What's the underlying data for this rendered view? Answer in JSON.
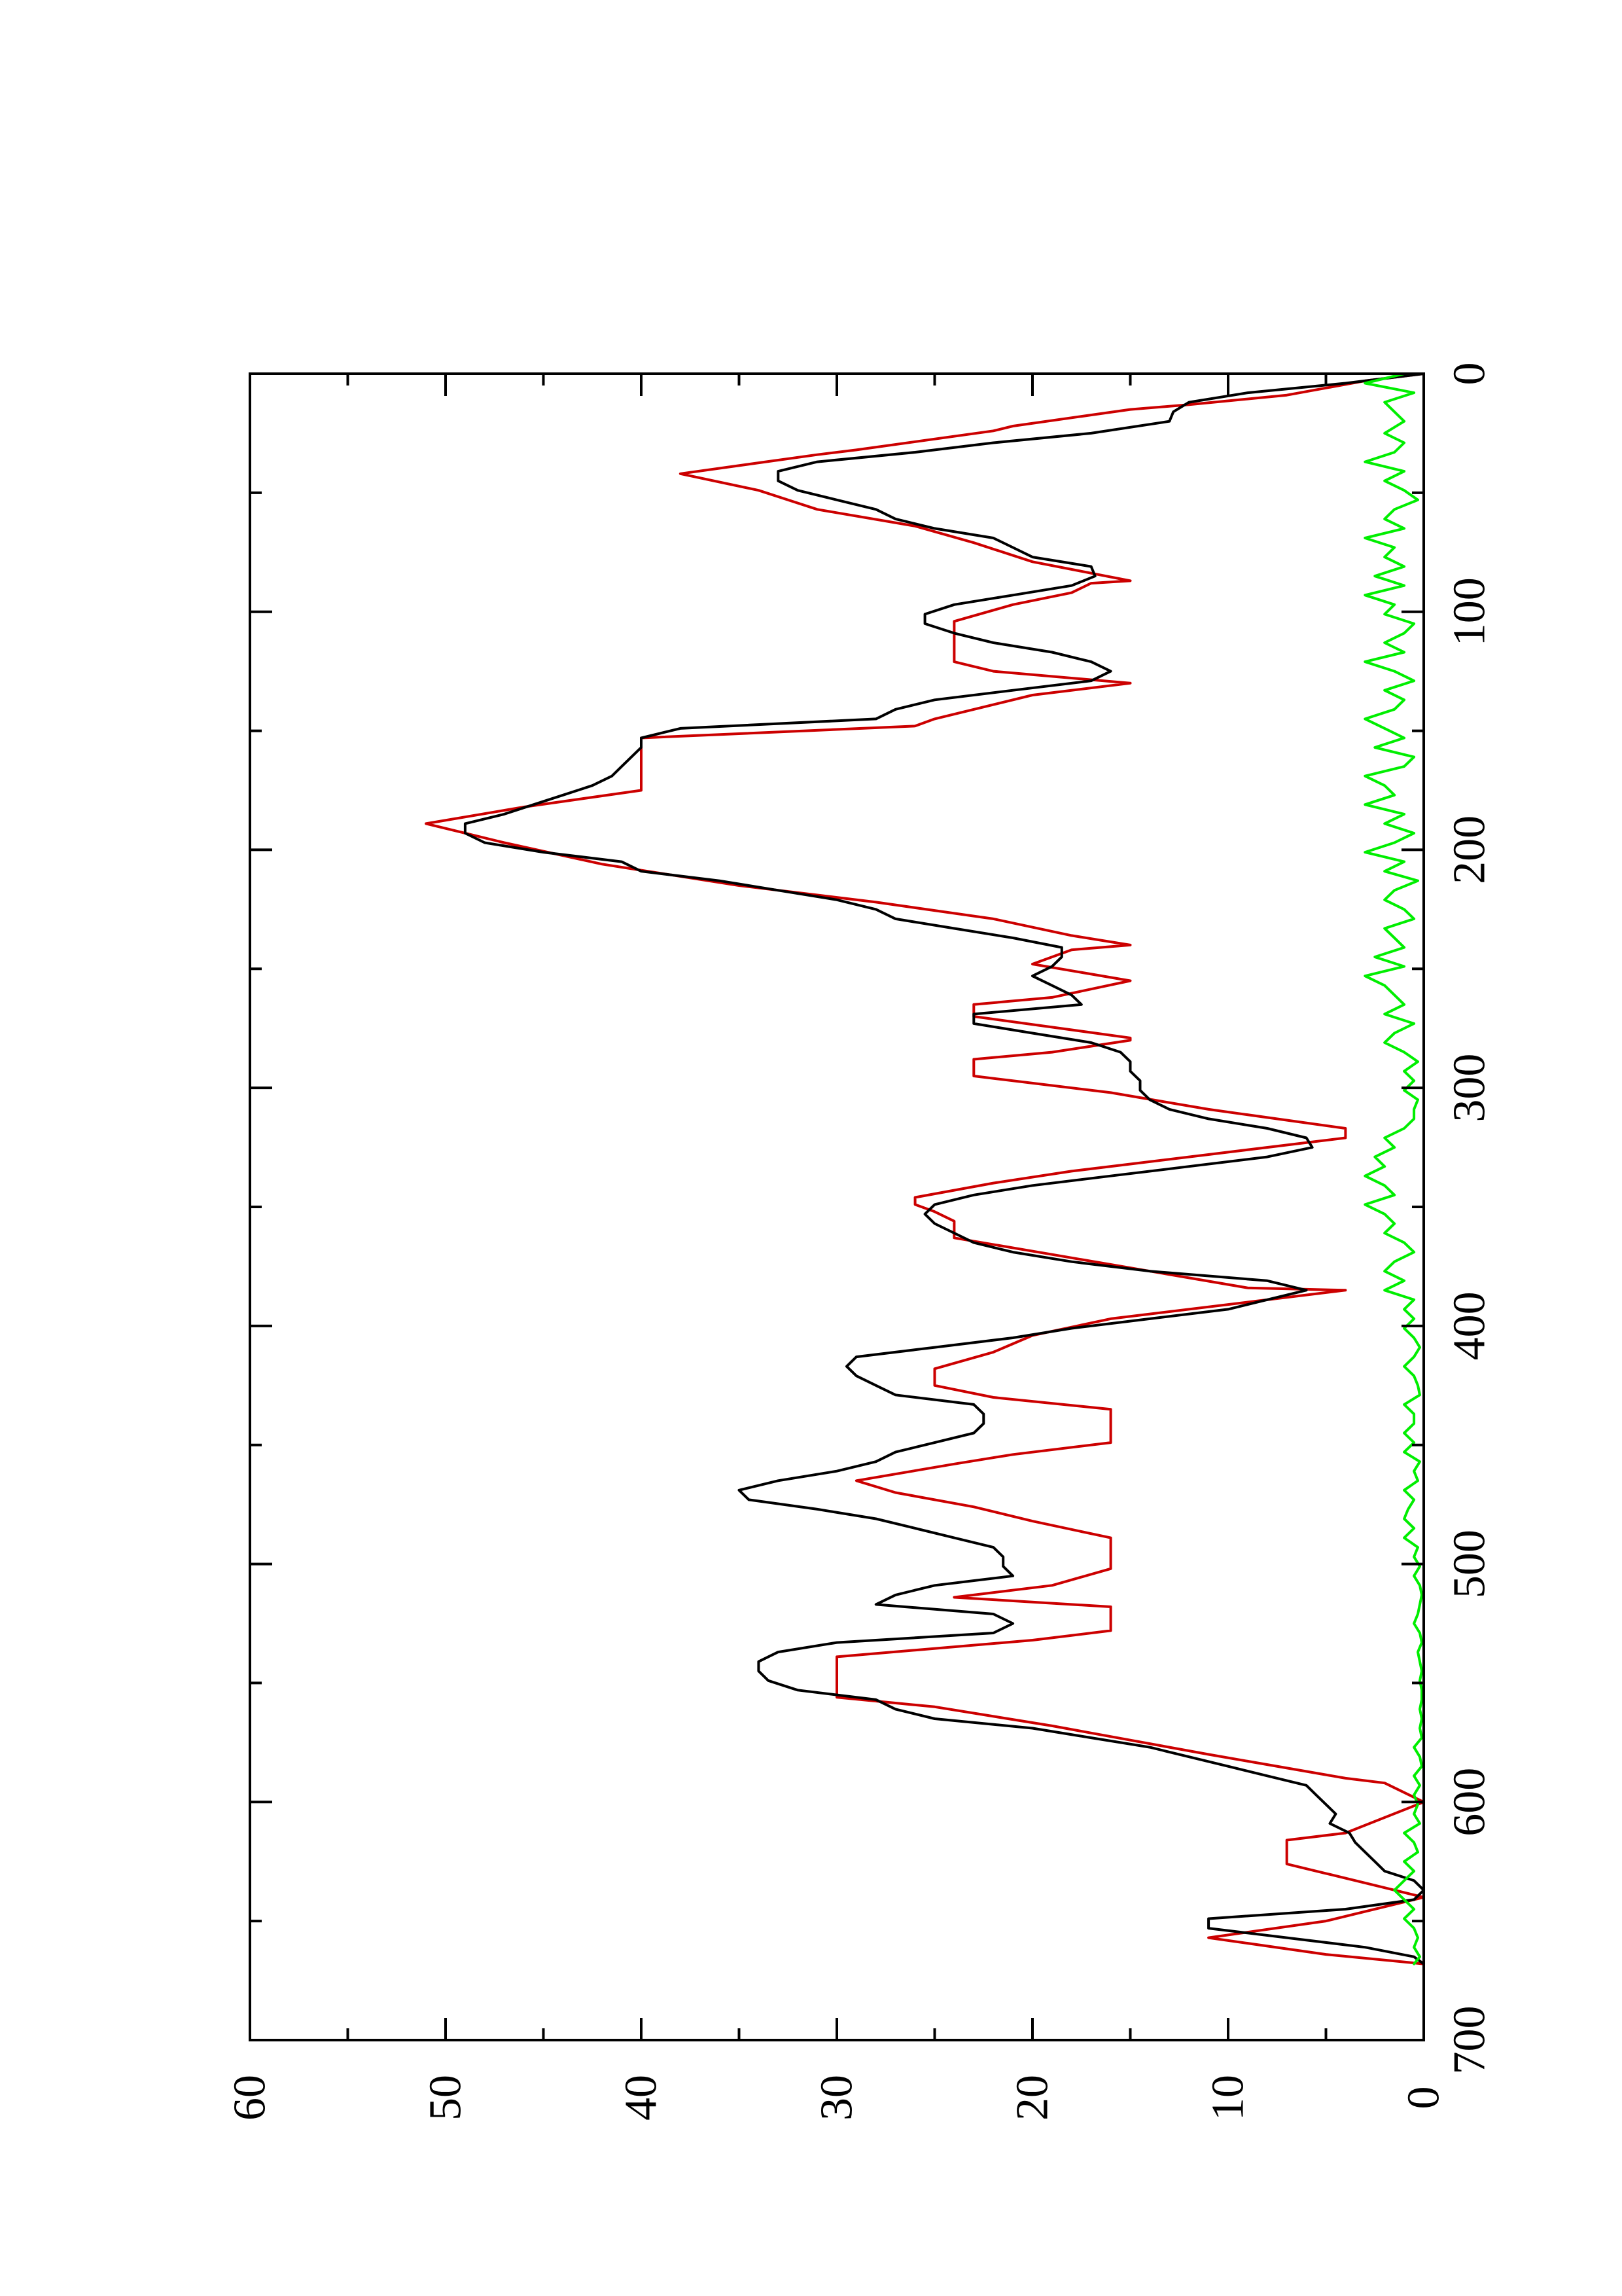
{
  "chart_data": {
    "type": "line",
    "title": "",
    "xlabel": "",
    "ylabel": "",
    "orientation": "rotated 90 degrees counter-clockwise",
    "xlim": [
      0,
      700
    ],
    "ylim": [
      0,
      60
    ],
    "x_ticks": [
      0,
      100,
      200,
      300,
      400,
      500,
      600,
      700
    ],
    "x_tick_labels": [
      "0",
      "100",
      "200",
      "300",
      "400",
      "500",
      "600",
      "700"
    ],
    "y_ticks": [
      0,
      10,
      20,
      30,
      40,
      50,
      60
    ],
    "y_tick_labels": [
      "0",
      "10",
      "20",
      "30",
      "40",
      "50",
      "60"
    ],
    "grid": false,
    "legend": "none",
    "series": [
      {
        "color": "#cc0000",
        "style": "step",
        "x": [
          0,
          3,
          9,
          13,
          15,
          22,
          24,
          32,
          34,
          42,
          49,
          57,
          64,
          71,
          79,
          87,
          88,
          92,
          97,
          104,
          106,
          121,
          125,
          130,
          135,
          145,
          148,
          153,
          168,
          175,
          182,
          189,
          197,
          206,
          215,
          222,
          229,
          236,
          240,
          242,
          248,
          255,
          262,
          265,
          270,
          279,
          280,
          285,
          288,
          295,
          302,
          309,
          317,
          321,
          328,
          335,
          340,
          346,
          349,
          352,
          356,
          363,
          370,
          377,
          384,
          385,
          390,
          397,
          404,
          411,
          418,
          424,
          425,
          430,
          435,
          448,
          449,
          454,
          458,
          465,
          470,
          476,
          482,
          489,
          490,
          502,
          509,
          514,
          518,
          528,
          532,
          539,
          545,
          556,
          560,
          568,
          574,
          580,
          590,
          592,
          600,
          613,
          616,
          626,
          630,
          636,
          640,
          650,
          657,
          664,
          668
        ],
        "y": [
          0,
          3,
          7,
          12,
          15,
          21,
          22,
          29,
          31,
          38,
          34,
          31,
          26,
          23,
          20,
          15,
          17,
          18,
          21,
          24,
          24,
          24,
          22,
          15,
          20,
          25,
          26,
          40,
          40,
          40,
          46,
          51,
          47,
          42,
          35,
          28,
          22,
          18,
          15,
          18,
          20,
          15,
          19,
          23,
          23,
          15,
          15,
          19,
          23,
          23,
          16,
          11,
          4,
          4,
          11,
          18,
          22,
          26,
          26,
          25,
          24,
          24,
          19,
          14,
          9,
          4,
          9,
          16,
          20,
          22,
          25,
          25,
          25,
          22,
          16,
          16,
          16,
          21,
          24,
          29,
          27,
          23,
          20,
          16,
          16,
          16,
          19,
          24,
          16,
          16,
          20,
          30,
          30,
          30,
          25,
          19,
          15,
          11,
          4,
          2,
          0,
          4,
          7,
          7,
          5,
          2,
          0,
          5,
          11,
          5,
          0
        ]
      },
      {
        "color": "#000000",
        "style": "line",
        "x": [
          0,
          4,
          8,
          12,
          16,
          20,
          25,
          29,
          33,
          37,
          41,
          45,
          49,
          53,
          57,
          61,
          65,
          69,
          73,
          77,
          81,
          85,
          89,
          93,
          97,
          101,
          105,
          109,
          113,
          117,
          121,
          125,
          129,
          133,
          137,
          141,
          145,
          149,
          153,
          157,
          161,
          165,
          169,
          173,
          177,
          181,
          185,
          189,
          193,
          197,
          201,
          205,
          209,
          213,
          217,
          221,
          225,
          229,
          233,
          237,
          241,
          245,
          249,
          253,
          257,
          261,
          265,
          269,
          273,
          277,
          281,
          285,
          289,
          293,
          297,
          301,
          305,
          309,
          313,
          317,
          321,
          325,
          329,
          333,
          337,
          341,
          345,
          349,
          353,
          357,
          361,
          365,
          369,
          373,
          377,
          381,
          385,
          389,
          393,
          397,
          401,
          405,
          409,
          413,
          417,
          421,
          425,
          429,
          433,
          437,
          441,
          445,
          449,
          453,
          457,
          461,
          465,
          469,
          473,
          477,
          481,
          485,
          489,
          493,
          497,
          501,
          505,
          509,
          513,
          517,
          521,
          525,
          529,
          533,
          537,
          541,
          545,
          549,
          553,
          557,
          561,
          565,
          569,
          573,
          577,
          581,
          585,
          589,
          593,
          597,
          601,
          605,
          609,
          613,
          617,
          621,
          625,
          629,
          633,
          637,
          641,
          645,
          649,
          653,
          657,
          661,
          665,
          668
        ],
        "y": [
          0,
          4,
          9,
          12,
          12.8,
          13,
          17,
          22,
          26,
          31,
          33,
          33,
          32,
          30,
          28,
          27,
          25,
          22,
          21,
          20,
          17,
          16.8,
          18,
          21,
          24,
          25.5,
          25.5,
          24,
          22,
          19,
          17,
          16,
          17,
          21,
          25,
          27,
          28,
          38,
          40,
          40,
          40.5,
          41,
          41.5,
          42.5,
          44,
          45.5,
          47,
          49,
          49,
          48,
          45,
          41,
          40,
          36,
          33,
          30,
          28,
          27,
          24,
          21,
          18.5,
          18.5,
          19,
          20,
          19,
          18,
          17.5,
          23,
          23,
          20,
          17,
          15.5,
          15,
          15,
          14.5,
          14.5,
          14,
          13,
          11,
          8,
          6,
          5.7,
          8,
          12,
          16,
          20,
          23,
          25,
          25.5,
          25,
          24,
          23,
          21,
          18,
          14,
          8,
          6,
          8,
          10,
          14,
          18,
          21,
          25,
          29,
          29.5,
          29,
          28,
          27,
          23,
          22.5,
          22.5,
          23,
          25,
          27,
          28,
          30,
          33,
          35,
          34.5,
          31,
          28,
          26,
          24,
          22,
          21.5,
          21.5,
          21,
          25,
          27,
          28,
          22,
          21,
          22,
          30,
          33,
          34,
          34,
          33.5,
          32,
          28,
          27,
          25,
          20,
          17,
          14,
          12,
          10,
          8,
          6,
          5.5,
          5,
          4.5,
          4.8,
          3.8,
          3.5,
          3,
          2.5,
          2,
          0.5,
          0,
          0.5,
          4,
          11,
          11,
          7,
          3,
          0.5,
          0
        ]
      },
      {
        "color": "#00ee00",
        "style": "line",
        "x": [
          0,
          4,
          8,
          12,
          16,
          20,
          25,
          29,
          33,
          37,
          41,
          45,
          49,
          53,
          57,
          61,
          65,
          69,
          73,
          77,
          81,
          85,
          89,
          93,
          97,
          101,
          105,
          109,
          113,
          117,
          121,
          125,
          129,
          133,
          137,
          141,
          145,
          149,
          153,
          157,
          161,
          165,
          169,
          173,
          177,
          181,
          185,
          189,
          193,
          197,
          201,
          205,
          209,
          213,
          217,
          221,
          225,
          229,
          233,
          237,
          241,
          245,
          249,
          253,
          257,
          261,
          265,
          269,
          273,
          277,
          281,
          285,
          289,
          293,
          297,
          301,
          305,
          309,
          313,
          317,
          321,
          325,
          329,
          333,
          337,
          341,
          345,
          349,
          353,
          357,
          361,
          365,
          369,
          373,
          377,
          381,
          385,
          389,
          393,
          397,
          401,
          405,
          409,
          413,
          417,
          421,
          425,
          429,
          433,
          437,
          441,
          445,
          449,
          453,
          457,
          461,
          465,
          469,
          473,
          477,
          481,
          485,
          489,
          493,
          497,
          501,
          505,
          509,
          513,
          517,
          521,
          525,
          529,
          533,
          537,
          541,
          545,
          549,
          553,
          557,
          561,
          565,
          569,
          573,
          577,
          581,
          585,
          589,
          593,
          597,
          601,
          605,
          609,
          613,
          617,
          621,
          625,
          629,
          633,
          637,
          641,
          645,
          649,
          653,
          657,
          661,
          665,
          668
        ],
        "y": [
          1,
          3,
          0.5,
          2,
          1.5,
          1,
          2,
          1,
          1.5,
          3,
          1,
          2,
          1,
          0.3,
          1.5,
          2,
          1,
          3,
          1.5,
          2,
          1,
          2.5,
          1,
          3,
          1.5,
          2,
          0.5,
          1,
          2,
          1,
          3,
          1.5,
          0.5,
          2,
          1,
          1.5,
          3,
          2,
          1,
          2.5,
          0.5,
          1,
          3,
          2,
          1.5,
          3,
          1,
          2,
          0.5,
          1.5,
          3,
          1,
          2,
          0.3,
          1.5,
          2,
          1,
          0.5,
          2,
          1.5,
          1,
          2.5,
          1,
          3,
          2,
          1.5,
          1,
          2,
          0.5,
          1.5,
          2,
          1,
          0.3,
          1,
          0.5,
          1,
          0.3,
          0.5,
          0.5,
          1,
          2,
          1.5,
          2.5,
          2,
          3,
          2,
          1.5,
          3,
          2,
          1.5,
          2,
          1,
          0.5,
          1.5,
          2,
          1,
          2,
          0.5,
          1,
          0.5,
          1,
          0.5,
          0.2,
          0.5,
          1,
          0.5,
          0.3,
          0.2,
          1,
          0.5,
          0.5,
          1,
          0.5,
          1,
          0.2,
          0.5,
          0.3,
          1,
          0.5,
          0.8,
          1,
          0.5,
          1,
          0.3,
          0.5,
          0.2,
          0.5,
          0.2,
          0.1,
          0.2,
          0.3,
          0.5,
          0.2,
          0.1,
          0.3,
          0.2,
          0.1,
          0.2,
          0.1,
          0.1,
          0.2,
          0.1,
          0.2,
          0.1,
          0.5,
          0.2,
          0.1,
          0.5,
          0.2,
          0.5,
          0.3,
          0.5,
          0.2,
          1,
          0.5,
          0.3,
          1,
          0.5,
          1,
          1.5,
          1,
          0.5,
          1,
          0.5,
          0.3,
          0.5,
          0.2,
          0.5
        ]
      }
    ]
  }
}
